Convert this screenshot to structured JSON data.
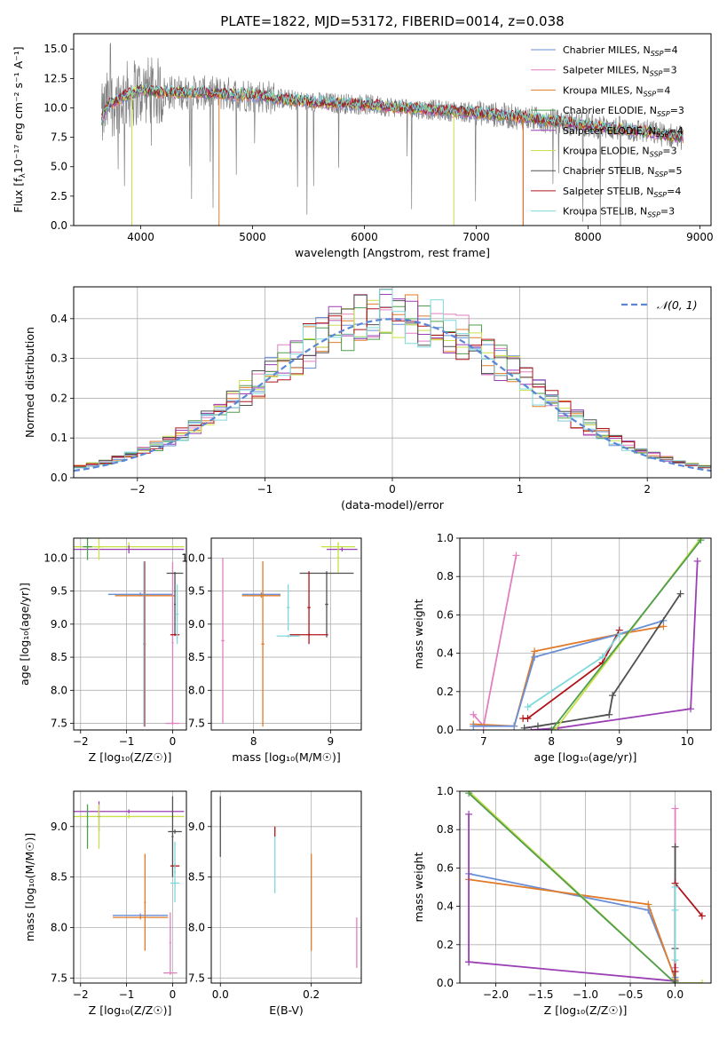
{
  "figure_title": "PLATE=1822, MJD=53172, FIBERID=0014, z=0.038",
  "colors": {
    "Chabrier MILES": "#6a8fd6",
    "Salpeter MILES": "#e17fbf",
    "Kroupa MILES": "#e07b2a",
    "Chabrier ELODIE": "#4f9d4f",
    "Salpeter ELODIE": "#9b3fb5",
    "Kroupa ELODIE": "#c9e04a",
    "Chabrier STELIB": "#505050",
    "Salpeter STELIB": "#b0141a",
    "Kroupa STELIB": "#7fd8dc",
    "spectrum": "#808080"
  },
  "chart_data": [
    {
      "id": "spectrum",
      "type": "line",
      "title": "PLATE=1822, MJD=53172, FIBERID=0014, z=0.038",
      "xlabel": "wavelength [Angstrom, rest frame]",
      "ylabel_prefix": "Flux [f",
      "ylabel_suffix": "10⁻¹⁷ erg cm⁻² s⁻¹ A⁻¹]",
      "xlim": [
        3400,
        9100
      ],
      "ylim": [
        0,
        16.3
      ],
      "xticks": [
        4000,
        5000,
        6000,
        7000,
        8000,
        9000
      ],
      "yticks": [
        0.0,
        2.5,
        5.0,
        7.5,
        10.0,
        12.5,
        15.0
      ],
      "legend_position": "upper-right",
      "legend": [
        {
          "label": "Chabrier MILES, N",
          "sub": "SSP",
          "suffix": "=4"
        },
        {
          "label": "Salpeter MILES, N",
          "sub": "SSP",
          "suffix": "=3"
        },
        {
          "label": "Kroupa MILES, N",
          "sub": "SSP",
          "suffix": "=4"
        },
        {
          "label": "Chabrier ELODIE, N",
          "sub": "SSP",
          "suffix": "=3"
        },
        {
          "label": "Salpeter ELODIE, N",
          "sub": "SSP",
          "suffix": "=4"
        },
        {
          "label": "Kroupa ELODIE, N",
          "sub": "SSP",
          "suffix": "=3"
        },
        {
          "label": "Chabrier STELIB, N",
          "sub": "SSP",
          "suffix": "=5"
        },
        {
          "label": "Salpeter STELIB, N",
          "sub": "SSP",
          "suffix": "=4"
        },
        {
          "label": "Kroupa STELIB, N",
          "sub": "SSP",
          "suffix": "=3"
        }
      ],
      "continuum": [
        [
          3650,
          9.0
        ],
        [
          3700,
          10.2
        ],
        [
          3850,
          11.0
        ],
        [
          4000,
          11.5
        ],
        [
          4200,
          11.3
        ],
        [
          4500,
          11.3
        ],
        [
          5000,
          11.1
        ],
        [
          5500,
          10.5
        ],
        [
          6000,
          10.3
        ],
        [
          6500,
          9.9
        ],
        [
          7000,
          9.6
        ],
        [
          7500,
          9.1
        ],
        [
          8000,
          8.5
        ],
        [
          8500,
          8.0
        ],
        [
          8850,
          7.5
        ]
      ]
    },
    {
      "id": "residuals",
      "type": "histogram",
      "xlabel": "(data-model)/error",
      "ylabel": "Normed distribution",
      "xlim": [
        -2.5,
        2.5
      ],
      "ylim": [
        0,
        0.48
      ],
      "xticks": [
        -2,
        -1,
        0,
        1,
        2
      ],
      "yticks": [
        0.0,
        0.1,
        0.2,
        0.3,
        0.4
      ],
      "grid": true,
      "legend_position": "upper-right",
      "reference": {
        "label": "𝒩(0, 1)",
        "mean": 0,
        "sigma": 1
      },
      "bin_width": 0.1,
      "x_start": -2.5
    },
    {
      "id": "age_vs_Z",
      "type": "errorbar",
      "xlabel": "Z [log₁₀(Z/Z☉)]",
      "ylabel": "age  [log₁₀(age/yr)]",
      "xlim": [
        -2.15,
        0.3
      ],
      "ylim": [
        7.4,
        10.3
      ],
      "xticks": [
        -2,
        -1,
        0
      ],
      "yticks": [
        7.5,
        8.0,
        8.5,
        9.0,
        9.5,
        10.0
      ],
      "grid": true,
      "points": [
        {
          "model": "Kroupa ELODIE",
          "x": -0.95,
          "xerr": 1.2,
          "y": 10.17,
          "yerr": 0.07
        },
        {
          "model": "Salpeter ELODIE",
          "x": -0.95,
          "xerr": 1.2,
          "y": 10.13,
          "yerr": 0.06
        },
        {
          "model": "Chabrier ELODIE",
          "x": -1.85,
          "xerr": 0.1,
          "y": 10.17,
          "yerr": 0.2
        },
        {
          "model": "Kroupa ELODIE",
          "x": -1.6,
          "xerr": 0.1,
          "y": 10.17,
          "yerr": 0.2
        },
        {
          "model": "Chabrier MILES",
          "x": -0.7,
          "xerr": 0.7,
          "y": 9.45,
          "yerr": 0.03
        },
        {
          "model": "Kroupa MILES",
          "x": -0.6,
          "xerr": 0.65,
          "y": 9.43,
          "yerr": 0.03
        },
        {
          "model": "Kroupa MILES",
          "x": -0.6,
          "xerr": 0.02,
          "y": 8.7,
          "yerr": 1.25
        },
        {
          "model": "Chabrier MILES",
          "x": -0.62,
          "xerr": 0.02,
          "y": 8.7,
          "yerr": 1.25
        },
        {
          "model": "Salpeter MILES",
          "x": 0.0,
          "xerr": 0.15,
          "y": 7.5,
          "yerr": 0.02
        },
        {
          "model": "Salpeter MILES",
          "x": 0.0,
          "xerr": 0.02,
          "y": 8.72,
          "yerr": 1.22
        },
        {
          "model": "Chabrier STELIB",
          "x": 0.05,
          "xerr": 0.18,
          "y": 9.77,
          "yerr": 0.02
        },
        {
          "model": "Chabrier STELIB",
          "x": 0.05,
          "xerr": 0.02,
          "y": 9.3,
          "yerr": 0.47
        },
        {
          "model": "Salpeter STELIB",
          "x": 0.05,
          "xerr": 0.1,
          "y": 8.84,
          "yerr": 0.02
        },
        {
          "model": "Kroupa STELIB",
          "x": 0.1,
          "xerr": 0.03,
          "y": 9.15,
          "yerr": 0.45
        }
      ]
    },
    {
      "id": "age_vs_mass",
      "type": "errorbar",
      "xlabel": "mass [log₁₀(M/M☉)]",
      "ylabel": "",
      "xlim": [
        7.45,
        9.4
      ],
      "ylim": [
        7.4,
        10.3
      ],
      "xticks": [
        8,
        9
      ],
      "yticks": [
        7.5,
        8.0,
        8.5,
        9.0,
        9.5,
        10.0
      ],
      "grid": true,
      "points": [
        {
          "model": "Kroupa ELODIE",
          "x": 9.1,
          "xerr": 0.22,
          "y": 10.17,
          "yerr": 0.07
        },
        {
          "model": "Salpeter ELODIE",
          "x": 9.15,
          "xerr": 0.2,
          "y": 10.13,
          "yerr": 0.03
        },
        {
          "model": "Kroupa ELODIE",
          "x": 9.1,
          "xerr": 0.02,
          "y": 10.0,
          "yerr": 0.22
        },
        {
          "model": "Chabrier STELIB",
          "x": 8.95,
          "xerr": 0.35,
          "y": 9.77,
          "yerr": 0.02
        },
        {
          "model": "Chabrier STELIB",
          "x": 8.95,
          "xerr": 0.02,
          "y": 9.3,
          "yerr": 0.5
        },
        {
          "model": "Chabrier MILES",
          "x": 8.1,
          "xerr": 0.25,
          "y": 9.45,
          "yerr": 0.03
        },
        {
          "model": "Kroupa MILES",
          "x": 8.1,
          "xerr": 0.25,
          "y": 9.43,
          "yerr": 0.03
        },
        {
          "model": "Kroupa MILES",
          "x": 8.12,
          "xerr": 0.02,
          "y": 8.7,
          "yerr": 1.25
        },
        {
          "model": "Salpeter MILES",
          "x": 7.6,
          "xerr": 0.02,
          "y": 8.75,
          "yerr": 1.25
        },
        {
          "model": "Salpeter MILES",
          "x": 7.6,
          "xerr": 0.0,
          "y": 7.5,
          "yerr": 0.0
        },
        {
          "model": "Kroupa STELIB",
          "x": 8.45,
          "xerr": 0.15,
          "y": 8.82,
          "yerr": 0.02
        },
        {
          "model": "Kroupa STELIB",
          "x": 8.45,
          "xerr": 0.02,
          "y": 9.25,
          "yerr": 0.35
        },
        {
          "model": "Salpeter STELIB",
          "x": 8.72,
          "xerr": 0.25,
          "y": 8.84,
          "yerr": 0.02
        },
        {
          "model": "Salpeter STELIB",
          "x": 8.72,
          "xerr": 0.02,
          "y": 9.25,
          "yerr": 0.55
        }
      ]
    },
    {
      "id": "weight_vs_age",
      "type": "line",
      "xlabel": "age  [log₁₀(age/yr)]",
      "ylabel": "mass weight",
      "xlim": [
        6.65,
        10.35
      ],
      "ylim": [
        0,
        1.0
      ],
      "xticks": [
        7,
        8,
        9,
        10
      ],
      "yticks": [
        0.0,
        0.2,
        0.4,
        0.6,
        0.8,
        1.0
      ],
      "grid": true,
      "series": [
        {
          "model": "Salpeter MILES",
          "x": [
            6.85,
            7.0,
            7.48
          ],
          "y": [
            0.08,
            0.02,
            0.91
          ]
        },
        {
          "model": "Kroupa MILES",
          "x": [
            6.85,
            7.45,
            7.75,
            9.0,
            9.65
          ],
          "y": [
            0.03,
            0.02,
            0.41,
            0.5,
            0.54
          ]
        },
        {
          "model": "Chabrier MILES",
          "x": [
            6.85,
            7.45,
            7.75,
            9.0,
            9.65
          ],
          "y": [
            0.02,
            0.02,
            0.38,
            0.5,
            0.57
          ]
        },
        {
          "model": "Salpeter STELIB",
          "x": [
            7.58,
            7.65,
            8.75,
            9.0
          ],
          "y": [
            0.06,
            0.06,
            0.35,
            0.52
          ]
        },
        {
          "model": "Kroupa STELIB",
          "x": [
            7.65,
            8.75,
            9.0
          ],
          "y": [
            0.12,
            0.38,
            0.5
          ]
        },
        {
          "model": "Chabrier STELIB",
          "x": [
            7.6,
            7.8,
            8.85,
            8.9,
            9.9
          ],
          "y": [
            0.01,
            0.02,
            0.08,
            0.18,
            0.71
          ]
        },
        {
          "model": "Salpeter ELODIE",
          "x": [
            7.7,
            8.1,
            10.05,
            10.15
          ],
          "y": [
            0.0,
            0.01,
            0.11,
            0.88
          ]
        },
        {
          "model": "Kroupa ELODIE",
          "x": [
            8.05,
            10.2
          ],
          "y": [
            0.0,
            1.0
          ]
        },
        {
          "model": "Chabrier ELODIE",
          "x": [
            8.0,
            10.2
          ],
          "y": [
            0.0,
            0.99
          ]
        }
      ]
    },
    {
      "id": "mass_vs_Z",
      "type": "errorbar",
      "xlabel": "Z [log₁₀(Z/Z☉)]",
      "ylabel": "mass [log₁₀(M/M☉)]",
      "xlim": [
        -2.15,
        0.3
      ],
      "ylim": [
        7.45,
        9.35
      ],
      "xticks": [
        -2,
        -1,
        0
      ],
      "yticks": [
        7.5,
        8.0,
        8.5,
        9.0
      ],
      "grid": true,
      "points": [
        {
          "model": "Salpeter ELODIE",
          "x": -0.95,
          "xerr": 1.2,
          "y": 9.15,
          "yerr": 0.02
        },
        {
          "model": "Kroupa ELODIE",
          "x": -0.95,
          "xerr": 1.2,
          "y": 9.1,
          "yerr": 0.02
        },
        {
          "model": "Chabrier ELODIE",
          "x": -1.85,
          "xerr": 0.02,
          "y": 9.0,
          "yerr": 0.22
        },
        {
          "model": "Salpeter ELODIE",
          "x": -1.6,
          "xerr": 0.02,
          "y": 9.1,
          "yerr": 0.15
        },
        {
          "model": "Kroupa ELODIE",
          "x": -1.6,
          "xerr": 0.02,
          "y": 9.0,
          "yerr": 0.22
        },
        {
          "model": "Chabrier MILES",
          "x": -0.7,
          "xerr": 0.6,
          "y": 8.12,
          "yerr": 0.02
        },
        {
          "model": "Kroupa MILES",
          "x": -0.7,
          "xerr": 0.6,
          "y": 8.1,
          "yerr": 0.02
        },
        {
          "model": "Kroupa MILES",
          "x": -0.6,
          "xerr": 0.02,
          "y": 8.25,
          "yerr": 0.48
        },
        {
          "model": "Salpeter MILES",
          "x": -0.05,
          "xerr": 0.15,
          "y": 7.55,
          "yerr": 0.02
        },
        {
          "model": "Salpeter MILES",
          "x": -0.05,
          "xerr": 0.02,
          "y": 7.85,
          "yerr": 0.3
        },
        {
          "model": "Chabrier STELIB",
          "x": 0.05,
          "xerr": 0.15,
          "y": 8.95,
          "yerr": 0.02
        },
        {
          "model": "Chabrier STELIB",
          "x": 0.0,
          "xerr": 0.02,
          "y": 8.9,
          "yerr": 0.4
        },
        {
          "model": "Salpeter STELIB",
          "x": 0.05,
          "xerr": 0.1,
          "y": 8.61,
          "yerr": 0.02
        },
        {
          "model": "Kroupa STELIB",
          "x": 0.05,
          "xerr": 0.1,
          "y": 8.44,
          "yerr": 0.02
        },
        {
          "model": "Kroupa STELIB",
          "x": 0.05,
          "xerr": 0.02,
          "y": 8.55,
          "yerr": 0.3
        }
      ]
    },
    {
      "id": "mass_vs_ebv",
      "type": "errorbar",
      "xlabel": "E(B-V)",
      "ylabel": "",
      "xlim": [
        -0.02,
        0.31
      ],
      "ylim": [
        7.45,
        9.35
      ],
      "xticks": [
        0.0,
        0.2
      ],
      "yticks": [
        7.5,
        8.0,
        8.5,
        9.0
      ],
      "grid": true,
      "points": [
        {
          "model": "Chabrier STELIB",
          "x": 0.0,
          "xerr": 0.0,
          "y": 9.0,
          "yerr": 0.3
        },
        {
          "model": "Salpeter STELIB",
          "x": 0.12,
          "xerr": 0.0,
          "y": 8.95,
          "yerr": 0.05
        },
        {
          "model": "Kroupa STELIB",
          "x": 0.12,
          "xerr": 0.0,
          "y": 8.62,
          "yerr": 0.28
        },
        {
          "model": "Kroupa MILES",
          "x": 0.2,
          "xerr": 0.0,
          "y": 8.25,
          "yerr": 0.48
        },
        {
          "model": "Salpeter MILES",
          "x": 0.3,
          "xerr": 0.0,
          "y": 7.85,
          "yerr": 0.25
        }
      ]
    },
    {
      "id": "weight_vs_Z",
      "type": "line",
      "xlabel": "Z [log₁₀(Z/Z☉)]",
      "ylabel": "mass weight",
      "xlim": [
        -2.4,
        0.4
      ],
      "ylim": [
        0,
        1.0
      ],
      "xticks": [
        -2.0,
        -1.5,
        -1.0,
        -0.5,
        0.0
      ],
      "yticks": [
        0.0,
        0.2,
        0.4,
        0.6,
        0.8,
        1.0
      ],
      "grid": true,
      "series": [
        {
          "model": "Chabrier MILES",
          "x": [
            -2.3,
            -0.3,
            0.0
          ],
          "y": [
            0.57,
            0.38,
            0.03
          ]
        },
        {
          "model": "Kroupa MILES",
          "x": [
            -2.3,
            -0.3,
            0.0
          ],
          "y": [
            0.54,
            0.41,
            0.02
          ]
        },
        {
          "model": "Salpeter ELODIE",
          "x": [
            -2.3,
            -2.3,
            -2.3,
            0.0
          ],
          "y": [
            0.88,
            0.11,
            0.11,
            0.01
          ]
        },
        {
          "model": "Kroupa ELODIE",
          "x": [
            -2.3,
            0.0,
            0.3
          ],
          "y": [
            1.0,
            0.0,
            0.0
          ]
        },
        {
          "model": "Chabrier ELODIE",
          "x": [
            -2.3,
            0.0
          ],
          "y": [
            0.99,
            0.0
          ]
        },
        {
          "model": "Salpeter MILES",
          "x": [
            0.0,
            0.0
          ],
          "y": [
            0.08,
            0.91
          ]
        },
        {
          "model": "Chabrier STELIB",
          "x": [
            0.0,
            0.0,
            0.0
          ],
          "y": [
            0.01,
            0.71,
            0.18
          ]
        },
        {
          "model": "Salpeter STELIB",
          "x": [
            0.0,
            0.0,
            0.3
          ],
          "y": [
            0.06,
            0.52,
            0.35
          ]
        },
        {
          "model": "Kroupa STELIB",
          "x": [
            0.0,
            0.0,
            0.0
          ],
          "y": [
            0.12,
            0.5,
            0.38
          ]
        }
      ]
    }
  ]
}
